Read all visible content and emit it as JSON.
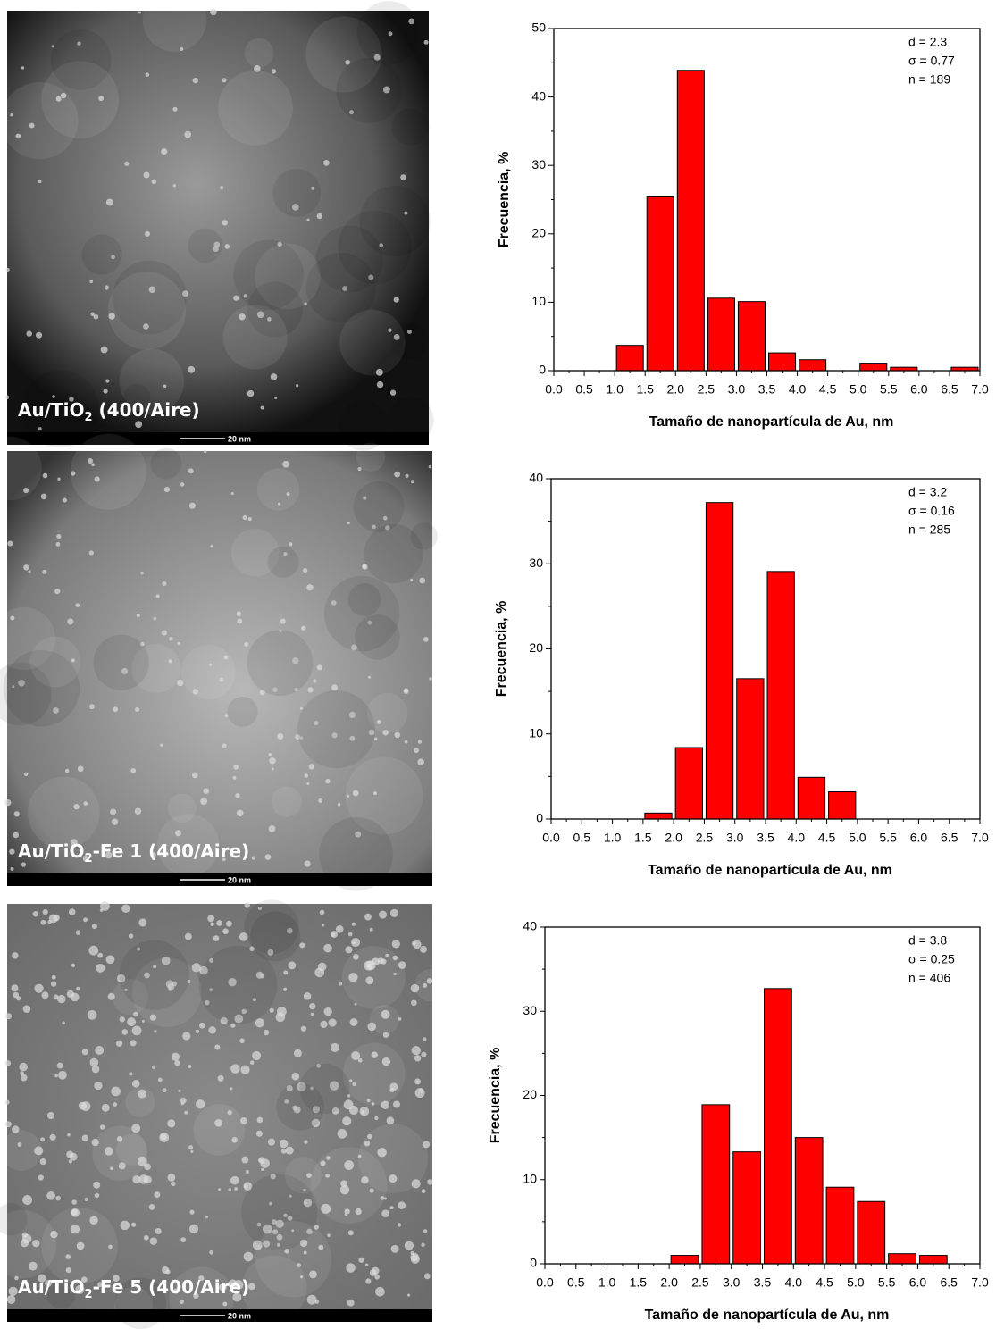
{
  "images": [
    {
      "label": [
        "Au/TiO",
        "2",
        " (400/Aire)"
      ],
      "scale_bar": "20 nm"
    },
    {
      "label": [
        "Au/TiO",
        "2",
        "-Fe 1 (400/Aire)"
      ],
      "scale_bar": "20 nm"
    },
    {
      "label": [
        "Au/TiO",
        "2",
        "-Fe 5 (400/Aire)"
      ],
      "scale_bar": "20 nm"
    }
  ],
  "chart_data": [
    {
      "type": "histogram",
      "x_label": "Tamaño de nanopartícula de Au, nm",
      "y_label": "Frecuencia, %",
      "annotations": [
        "d = 2.3",
        "σ = 0.77",
        "n = 189"
      ],
      "color": "#ff0000",
      "bins": [
        0,
        0.5,
        1,
        1.5,
        2,
        2.5,
        3,
        3.5,
        4,
        4.5,
        5,
        5.5,
        6,
        6.5,
        7
      ],
      "values": [
        0,
        0,
        3.7,
        25.4,
        43.9,
        10.6,
        10.1,
        2.6,
        1.6,
        0,
        1.1,
        0.5,
        0,
        0.5
      ],
      "xlim": [
        0,
        7
      ],
      "ylim": [
        0,
        50
      ],
      "yticks": [
        0,
        10,
        20,
        30,
        40,
        50
      ],
      "xticks": [
        {
          "value": 0,
          "label": "0.0"
        },
        0.5,
        {
          "value": 1,
          "label": "1.0"
        },
        1.5,
        {
          "value": 2,
          "label": "2.0"
        },
        2.5,
        {
          "value": 3,
          "label": "3.0"
        },
        3.5,
        {
          "value": 4,
          "label": "4.0"
        },
        4.5,
        {
          "value": 5,
          "label": "5.0"
        },
        5.5,
        {
          "value": 6,
          "label": "6.0"
        },
        6.5,
        {
          "value": 7,
          "label": "7.0"
        }
      ]
    },
    {
      "type": "histogram",
      "x_label": "Tamaño de nanopartícula de Au, nm",
      "y_label": "Frecuencia, %",
      "annotations": [
        "d = 3.2",
        "σ = 0.16",
        "n = 285"
      ],
      "color": "#ff0000",
      "bins": [
        0,
        0.5,
        1,
        1.5,
        2,
        2.5,
        3,
        3.5,
        4,
        4.5,
        5,
        5.5,
        6,
        6.5,
        7
      ],
      "values": [
        0,
        0,
        0,
        0.7,
        8.4,
        37.2,
        16.5,
        29.1,
        4.9,
        3.2,
        0,
        0,
        0,
        0
      ],
      "xlim": [
        0,
        7
      ],
      "ylim": [
        0,
        40
      ],
      "yticks": [
        0,
        10,
        20,
        30,
        40
      ],
      "xticks": [
        {
          "value": 0,
          "label": "0.0"
        },
        0.5,
        {
          "value": 1,
          "label": "1.0"
        },
        1.5,
        {
          "value": 2,
          "label": "2.0"
        },
        2.5,
        {
          "value": 3,
          "label": "3.0"
        },
        3.5,
        {
          "value": 4,
          "label": "4.0"
        },
        4.5,
        {
          "value": 5,
          "label": "5.0"
        },
        5.5,
        {
          "value": 6,
          "label": "6.0"
        },
        6.5,
        {
          "value": 7,
          "label": "7.0"
        }
      ]
    },
    {
      "type": "histogram",
      "x_label": "Tamaño de nanopartícula de Au, nm",
      "y_label": "Frecuencia, %",
      "annotations": [
        "d = 3.8",
        "σ = 0.25",
        "n = 406"
      ],
      "color": "#ff0000",
      "bins": [
        0,
        0.5,
        1,
        1.5,
        2,
        2.5,
        3,
        3.5,
        4,
        4.5,
        5,
        5.5,
        6,
        6.5,
        7
      ],
      "values": [
        0,
        0,
        0,
        0,
        1.0,
        18.9,
        13.3,
        32.7,
        15.0,
        9.1,
        7.4,
        1.2,
        1.0,
        0
      ],
      "xlim": [
        0,
        7
      ],
      "ylim": [
        0,
        40
      ],
      "yticks": [
        0,
        10,
        20,
        30,
        40
      ],
      "xticks": [
        {
          "value": 0,
          "label": "0.0"
        },
        0.5,
        {
          "value": 1,
          "label": "1.0"
        },
        1.5,
        {
          "value": 2,
          "label": "2.0"
        },
        2.5,
        {
          "value": 3,
          "label": "3.0"
        },
        3.5,
        {
          "value": 4,
          "label": "4.0"
        },
        4.5,
        {
          "value": 5,
          "label": "5.0"
        },
        5.5,
        {
          "value": 6,
          "label": "6.0"
        },
        6.5,
        {
          "value": 7,
          "label": "7.0"
        }
      ]
    }
  ]
}
